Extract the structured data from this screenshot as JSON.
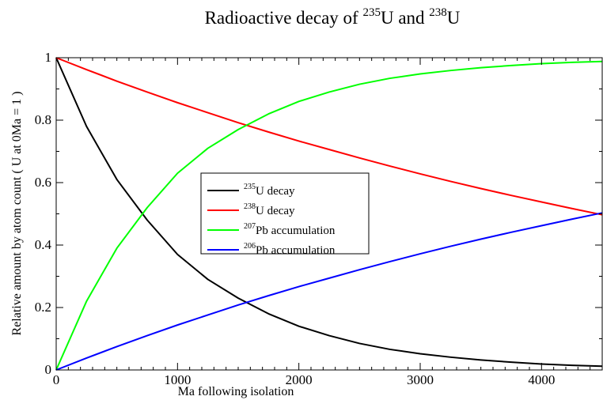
{
  "chart_data": {
    "type": "line",
    "title": {
      "prefix": "Radioactive decay of ",
      "iso1_mass": "235",
      "iso1_symbol": "U",
      "joiner": " and ",
      "iso2_mass": "238",
      "iso2_symbol": "U"
    },
    "xlabel": "Ma following isolation",
    "ylabel": "Relative amount by atom count ( U at 0Ma = 1 )",
    "xlim": [
      0,
      4500
    ],
    "ylim": [
      0,
      1
    ],
    "xticks": [
      0,
      1000,
      2000,
      3000,
      4000
    ],
    "xtick_labels": [
      "0",
      "1000",
      "2000",
      "3000",
      "4000"
    ],
    "yticks": [
      0,
      0.2,
      0.4,
      0.6,
      0.8,
      1
    ],
    "ytick_labels": [
      "0",
      "0.2",
      "0.4",
      "0.6",
      "0.8",
      "1"
    ],
    "x": [
      0,
      250,
      500,
      750,
      1000,
      1250,
      1500,
      1750,
      2000,
      2250,
      2500,
      2750,
      3000,
      3250,
      3500,
      3750,
      4000,
      4250,
      4500
    ],
    "series": [
      {
        "name_mass": "235",
        "name_rest": "U decay",
        "color": "#000000",
        "values": [
          1.0,
          0.78,
          0.61,
          0.48,
          0.37,
          0.29,
          0.23,
          0.18,
          0.14,
          0.11,
          0.085,
          0.066,
          0.052,
          0.041,
          0.032,
          0.025,
          0.019,
          0.015,
          0.012
        ]
      },
      {
        "name_mass": "238",
        "name_rest": "U decay",
        "color": "#ff0000",
        "values": [
          1.0,
          0.962,
          0.925,
          0.89,
          0.856,
          0.824,
          0.792,
          0.762,
          0.733,
          0.706,
          0.679,
          0.653,
          0.628,
          0.604,
          0.581,
          0.559,
          0.538,
          0.517,
          0.497
        ]
      },
      {
        "name_mass": "207",
        "name_rest": "Pb accumulation",
        "color": "#00ff00",
        "values": [
          0.0,
          0.22,
          0.39,
          0.52,
          0.63,
          0.71,
          0.77,
          0.82,
          0.86,
          0.89,
          0.915,
          0.934,
          0.948,
          0.959,
          0.968,
          0.975,
          0.981,
          0.985,
          0.988
        ]
      },
      {
        "name_mass": "206",
        "name_rest": "Pb accumulation",
        "color": "#0000ff",
        "values": [
          0.0,
          0.038,
          0.075,
          0.11,
          0.144,
          0.176,
          0.208,
          0.238,
          0.267,
          0.294,
          0.321,
          0.347,
          0.372,
          0.396,
          0.419,
          0.441,
          0.462,
          0.483,
          0.503
        ]
      }
    ],
    "legend_position": "center",
    "grid": false
  }
}
